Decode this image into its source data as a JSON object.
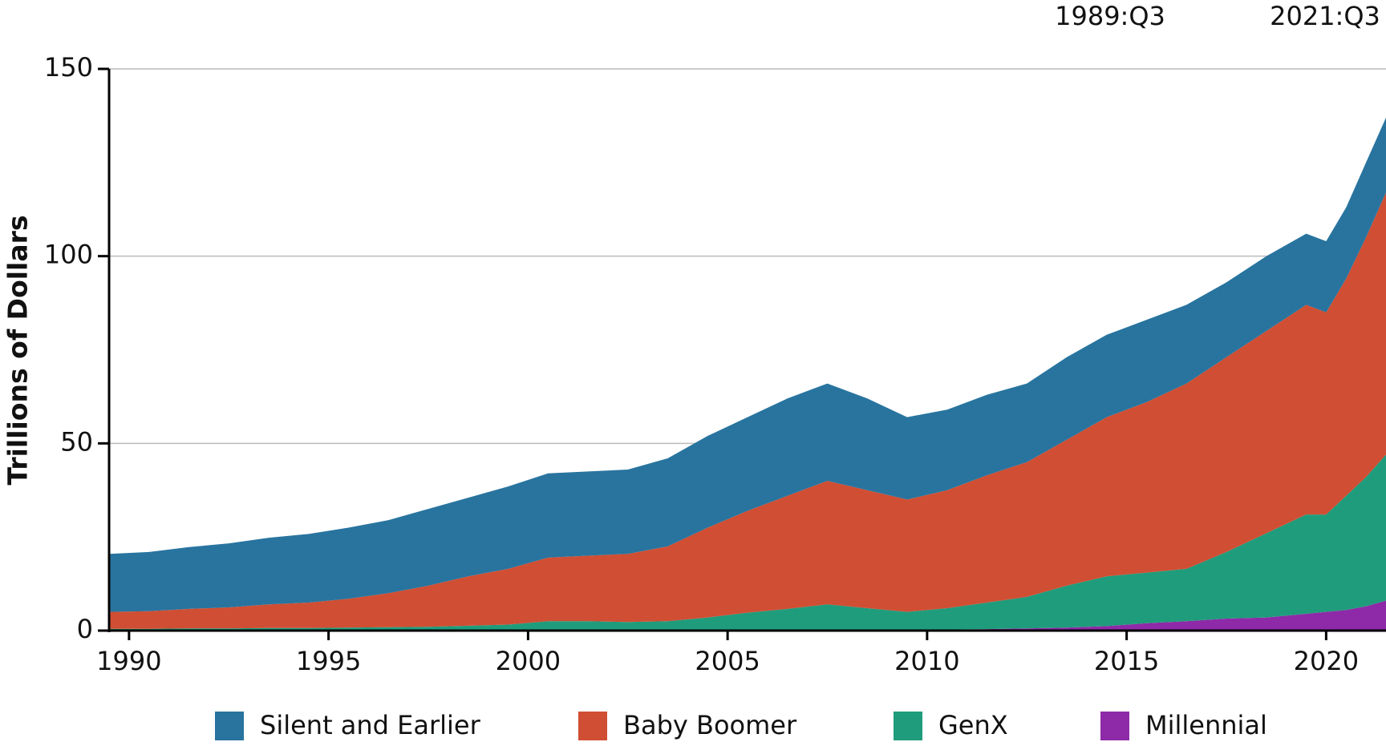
{
  "chart_data": {
    "type": "stacked-area",
    "y_label": "Trillions of Dollars",
    "annotations": [
      "1989:Q3",
      "2021:Q3"
    ],
    "x": [
      1989.5,
      1990.5,
      1991.5,
      1992.5,
      1993.5,
      1994.5,
      1995.5,
      1996.5,
      1997.5,
      1998.5,
      1999.5,
      2000.5,
      2001.5,
      2002.5,
      2003.5,
      2004.5,
      2005.5,
      2006.5,
      2007.5,
      2008.5,
      2009.5,
      2010.5,
      2011.5,
      2012.5,
      2013.5,
      2014.5,
      2015.5,
      2016.5,
      2017.5,
      2018.5,
      2019.5,
      2020.0,
      2020.5,
      2021.0,
      2021.5
    ],
    "series": [
      {
        "name": "Silent and Earlier",
        "color": "#28749f",
        "values": [
          15.5,
          15.8,
          16.5,
          17.1,
          17.8,
          18.3,
          19,
          19.5,
          20.5,
          21,
          22,
          22.5,
          22.5,
          22.5,
          23.5,
          24.5,
          25,
          26,
          26,
          24.5,
          22,
          21.5,
          21.5,
          21,
          22,
          22,
          22,
          21,
          20,
          20,
          19,
          19,
          19,
          20,
          20
        ]
      },
      {
        "name": "Baby Boomer",
        "color": "#d04e33",
        "values": [
          4.5,
          4.7,
          5.2,
          5.6,
          6.3,
          6.8,
          7.7,
          9.1,
          11,
          13.2,
          14.9,
          17,
          17.5,
          18.2,
          20,
          24,
          27.2,
          30.2,
          33,
          31.5,
          30,
          31.5,
          34,
          36,
          39,
          42.5,
          45.5,
          49.5,
          52,
          54,
          56,
          54,
          58,
          64,
          70
        ]
      },
      {
        "name": "GenX",
        "color": "#1f9c7c",
        "values": [
          0.5,
          0.5,
          0.6,
          0.6,
          0.7,
          0.7,
          0.8,
          0.9,
          1.0,
          1.3,
          1.6,
          2.5,
          2.5,
          2.3,
          2.5,
          3.5,
          4.8,
          5.8,
          7,
          6,
          4.8,
          5.7,
          7.1,
          8.4,
          11.2,
          13.3,
          13.5,
          14,
          17.8,
          22.5,
          26.5,
          26,
          30.5,
          34.5,
          39
        ]
      },
      {
        "name": "Millennial",
        "color": "#8e2aa8",
        "values": [
          0,
          0,
          0,
          0,
          0,
          0,
          0,
          0,
          0,
          0,
          0,
          0,
          0,
          0,
          0,
          0,
          0,
          0,
          0,
          0,
          0.2,
          0.3,
          0.4,
          0.6,
          0.8,
          1.2,
          2.0,
          2.5,
          3.2,
          3.5,
          4.5,
          5,
          5.5,
          6.5,
          8
        ]
      }
    ],
    "xlim": [
      1989.5,
      2021.5
    ],
    "xticks": [
      1990,
      1995,
      2000,
      2005,
      2010,
      2015,
      2020
    ],
    "ylim": [
      0,
      150
    ],
    "yticks": [
      0,
      50,
      100,
      150
    ],
    "grid": true,
    "legend": "bottom"
  }
}
